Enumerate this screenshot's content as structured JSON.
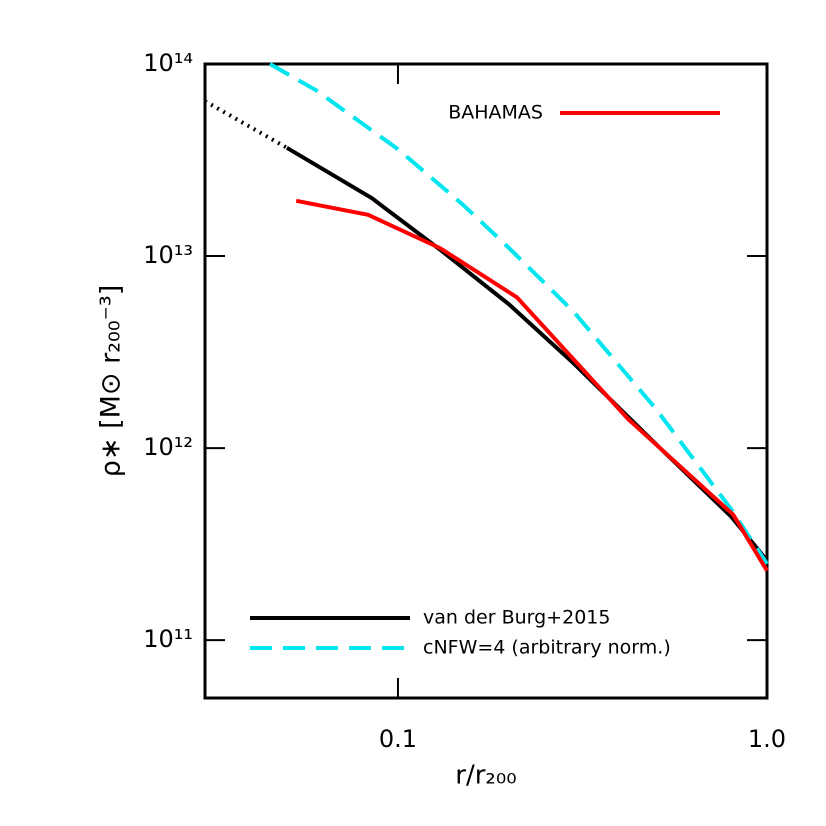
{
  "chart_data": {
    "type": "line",
    "x_label": "r/r₂₀₀",
    "y_label": "ρ∗ [M⊙ r₂₀₀⁻³]",
    "log_x": true,
    "log_y": true,
    "xlim": [
      0.03,
      1.0
    ],
    "xticks": [
      0.1,
      {
        "value": 1,
        "label": "1.0"
      }
    ],
    "ylim": [
      50000000000,
      100000000000000
    ],
    "yticks": [
      {
        "value": 100000000000,
        "label": "10¹¹"
      },
      {
        "value": 1000000000000,
        "label": "10¹²"
      },
      {
        "value": 10000000000000,
        "label": "10¹³"
      },
      {
        "value": 100000000000000,
        "label": "10¹⁴"
      }
    ],
    "series": [
      {
        "name": "van der Burg+2015",
        "color": "#000000",
        "style": "solid",
        "x": [
          0.05,
          0.085,
          0.13,
          0.2,
          0.3,
          0.5,
          0.8,
          1.0
        ],
        "values": [
          36600000000000,
          20000000000000,
          10800000000000,
          5600000000000,
          2750000000000,
          1050000000000,
          440000000000,
          260000000000
        ]
      },
      {
        "color": "#000000",
        "style": "dotted",
        "x": [
          0.03,
          0.05
        ],
        "values": [
          64000000000000,
          36600000000000
        ]
      },
      {
        "name": "cNFW=4 (arbitrary norm.)",
        "color": "#00e5ee",
        "style": "dashed",
        "x": [
          0.045,
          0.06,
          0.1,
          0.15,
          0.2,
          0.3,
          0.5,
          0.8,
          1.0
        ],
        "values": [
          100000000000000,
          73000000000000,
          36000000000000,
          18500000000000,
          11000000000000,
          5100000000000,
          1600000000000,
          480000000000,
          250000000000
        ]
      },
      {
        "name": "BAHAMAS",
        "color": "#ff0000",
        "style": "solid",
        "x": [
          0.053,
          0.083,
          0.13,
          0.21,
          0.42,
          0.81,
          1.0
        ],
        "values": [
          19400000000000,
          16400000000000,
          11000000000000,
          6100000000000,
          1420000000000,
          450000000000,
          230000000000
        ]
      }
    ]
  }
}
